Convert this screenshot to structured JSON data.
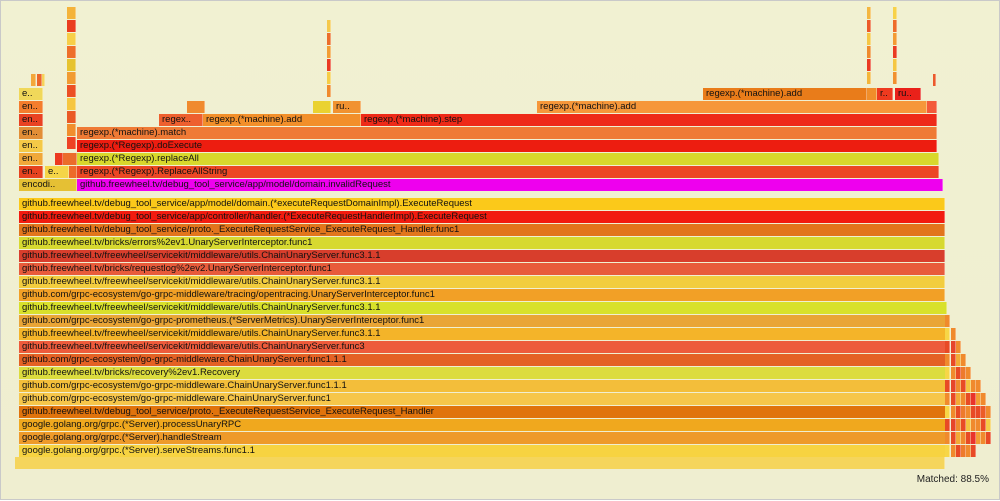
{
  "status": {
    "matched": "Matched: 88.5%"
  },
  "colors": {
    "background": "#f0f0d2",
    "highlight": "#ee00ee"
  },
  "flamegraph": {
    "main_stack": [
      "google.golang.org/grpc.(*Server).serveStreams.func1.1",
      "google.golang.org/grpc.(*Server).handleStream",
      "google.golang.org/grpc.(*Server).processUnaryRPC",
      "github.freewheel.tv/debug_tool_service/proto._ExecuteRequestService_ExecuteRequest_Handler",
      "github.com/grpc-ecosystem/go-grpc-middleware.ChainUnaryServer.func1",
      "github.com/grpc-ecosystem/go-grpc-middleware.ChainUnaryServer.func1.1.1",
      "github.freewheel.tv/bricks/recovery%2ev1.Recovery",
      "github.com/grpc-ecosystem/go-grpc-middleware.ChainUnaryServer.func1.1.1",
      "github.freewheel.tv/freewheel/servicekit/middleware/utils.ChainUnaryServer.func3",
      "github.freewheel.tv/freewheel/servicekit/middleware/utils.ChainUnaryServer.func3.1.1",
      "github.com/grpc-ecosystem/go-grpc-prometheus.(*ServerMetrics).UnaryServerInterceptor.func1",
      "github.freewheel.tv/freewheel/servicekit/middleware/utils.ChainUnaryServer.func3.1.1",
      "github.com/grpc-ecosystem/go-grpc-middleware/tracing/opentracing.UnaryServerInterceptor.func1",
      "github.freewheel.tv/freewheel/servicekit/middleware/utils.ChainUnaryServer.func3.1.1",
      "github.freewheel.tv/bricks/requestlog%2ev2.UnaryServerInterceptor.func1",
      "github.freewheel.tv/freewheel/servicekit/middleware/utils.ChainUnaryServer.func3.1.1",
      "github.freewheel.tv/bricks/errors%2ev1.UnaryServerInterceptor.func1",
      "github.freewheel.tv/debug_tool_service/proto._ExecuteRequestService_ExecuteRequest_Handler.func1",
      "github.freewheel.tv/debug_tool_service/app/controller/handler.(*ExecuteRequestHandlerImpl).ExecuteRequest",
      "github.freewheel.tv/debug_tool_service/app/model/domain.(*executeRequestDomainImpl).ExecuteRequest"
    ],
    "upper_labels": {
      "encodi": "encodi..",
      "invalid_request": "github.freewheel.tv/debug_tool_service/app/model/domain.invalidRequest",
      "en": "en..",
      "e": "e..",
      "replace_all_string": "regexp.(*Regexp).ReplaceAllString",
      "replace_all": "regexp.(*Regexp).replaceAll",
      "do_execute": "regexp.(*Regexp).doExecute",
      "match": "regexp.(*machine).match",
      "regex_short": "regex..",
      "machine_add": "regexp.(*machine).add",
      "machine_step": "regexp.(*machine).step",
      "ru": "ru..",
      "r": "r..",
      "e_top": "e.."
    }
  }
}
